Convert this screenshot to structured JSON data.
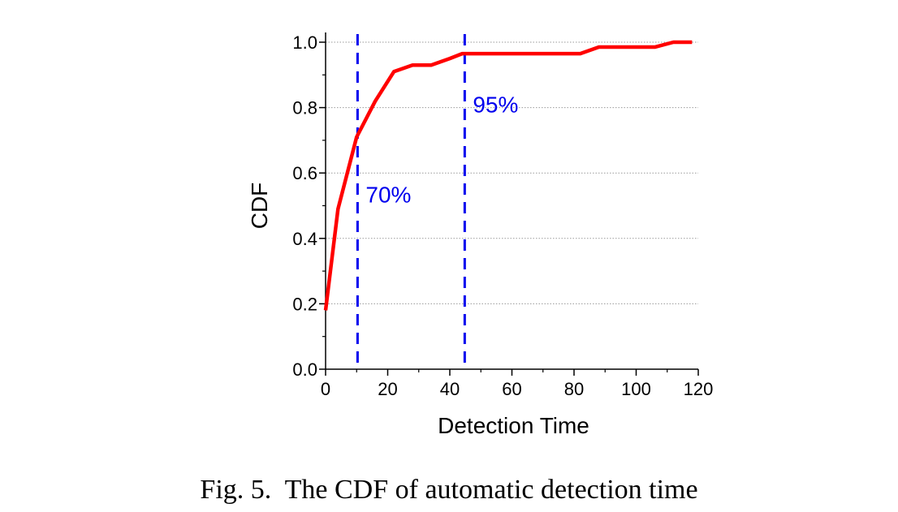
{
  "chart_data": {
    "type": "line",
    "title": "",
    "xlabel": "Detection Time",
    "ylabel": "CDF",
    "xlim": [
      0,
      120
    ],
    "ylim": [
      0,
      1.0
    ],
    "grid": true,
    "x_ticks": [
      0,
      20,
      40,
      60,
      80,
      100,
      120
    ],
    "x_tick_labels": [
      "0",
      "20",
      "40",
      "60",
      "80",
      "100",
      "120"
    ],
    "y_ticks": [
      0.0,
      0.2,
      0.4,
      0.6,
      0.8,
      1.0
    ],
    "y_tick_labels": [
      "0.0",
      "0.2",
      "0.4",
      "0.6",
      "0.8",
      "1.0"
    ],
    "series": [
      {
        "name": "CDF",
        "color": "#ff0000",
        "x": [
          0,
          4,
          10,
          16,
          22,
          28,
          34,
          40,
          44,
          82,
          88,
          106,
          112,
          118
        ],
        "y": [
          0.18,
          0.49,
          0.71,
          0.82,
          0.91,
          0.93,
          0.93,
          0.95,
          0.965,
          0.965,
          0.985,
          0.985,
          1.0,
          1.0
        ]
      }
    ],
    "reference_lines": [
      {
        "x": 10.3,
        "label": "70%",
        "color": "#0000ee",
        "label_y": 0.535
      },
      {
        "x": 44.8,
        "label": "95%",
        "color": "#0000ee",
        "label_y": 0.81
      }
    ]
  },
  "caption": "Fig. 5.  The CDF of automatic detection time"
}
